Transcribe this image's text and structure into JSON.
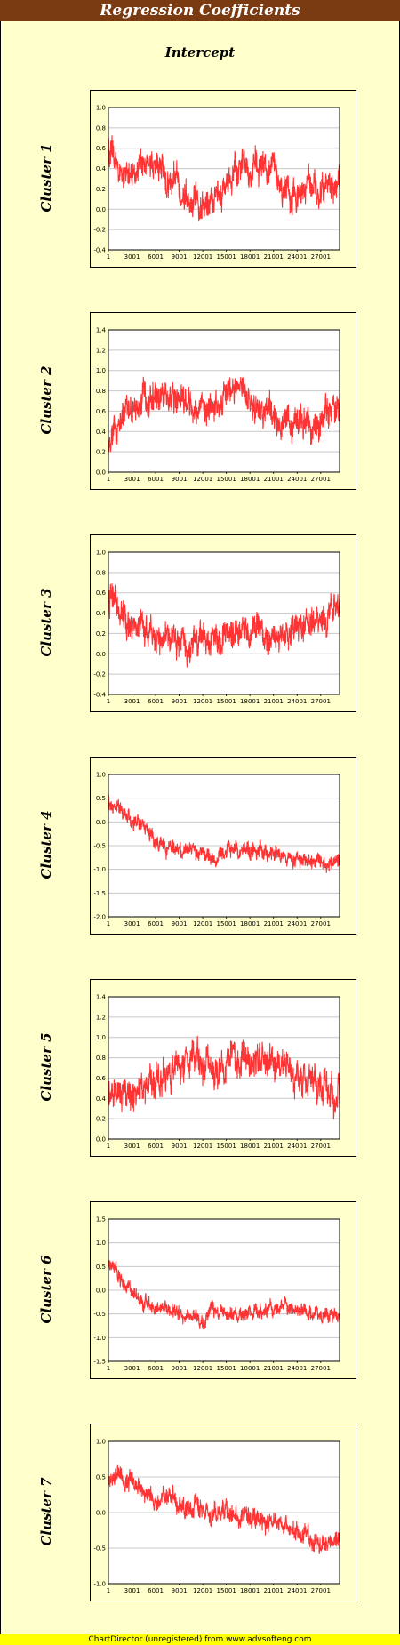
{
  "title": "Regression Coefficients",
  "subtitle": "Intercept",
  "footer": "ChartDirector (unregistered) from www.advsofteng.com",
  "colors": {
    "series": "#ff3333",
    "plot_bg": "#ffffff",
    "page_bg": "#ffffcc",
    "title_bg": "#7a3a12"
  },
  "chart_data": [
    {
      "type": "line",
      "cluster": "Cluster 1",
      "xticks": [
        "1",
        "3001",
        "6001",
        "9001",
        "12001",
        "15001",
        "18001",
        "21001",
        "24001",
        "27001"
      ],
      "xlim": [
        1,
        29400
      ],
      "ylim": [
        -0.4,
        1.0
      ],
      "yticks": [
        "-0.4",
        "-0.2",
        "0.0",
        "0.2",
        "0.4",
        "0.6",
        "0.8",
        "1.0"
      ],
      "series": [
        {
          "x": [
            1,
            1500,
            3000,
            4500,
            6000,
            7500,
            9000,
            10500,
            12000,
            13500,
            15000,
            16500,
            18000,
            19500,
            21000,
            22500,
            24000,
            25500,
            27000,
            28500,
            29400
          ],
          "values": [
            0.6,
            0.32,
            0.38,
            0.42,
            0.45,
            0.3,
            0.22,
            0.15,
            0.1,
            0.08,
            0.16,
            0.42,
            0.48,
            0.38,
            0.3,
            0.2,
            0.16,
            0.22,
            0.18,
            0.2,
            0.28
          ],
          "spread": 0.13
        }
      ]
    },
    {
      "type": "line",
      "cluster": "Cluster 2",
      "xticks": [
        "1",
        "3001",
        "6001",
        "9001",
        "12001",
        "15001",
        "18001",
        "21001",
        "24001",
        "27001"
      ],
      "xlim": [
        1,
        29400
      ],
      "ylim": [
        0.0,
        1.4
      ],
      "yticks": [
        "0.0",
        "0.2",
        "0.4",
        "0.6",
        "0.8",
        "1.0",
        "1.2",
        "1.4"
      ],
      "series": [
        {
          "x": [
            1,
            1500,
            3000,
            4500,
            6000,
            7500,
            9000,
            10500,
            12000,
            13500,
            15000,
            16500,
            18000,
            19500,
            21000,
            22500,
            24000,
            25500,
            27000,
            28500,
            29400
          ],
          "values": [
            0.2,
            0.45,
            0.62,
            0.68,
            0.72,
            0.76,
            0.72,
            0.65,
            0.6,
            0.68,
            0.78,
            0.85,
            0.72,
            0.62,
            0.55,
            0.5,
            0.48,
            0.52,
            0.5,
            0.55,
            0.6
          ],
          "spread": 0.13
        }
      ]
    },
    {
      "type": "line",
      "cluster": "Cluster 3",
      "xticks": [
        "1",
        "3001",
        "6001",
        "9001",
        "12001",
        "15001",
        "18001",
        "21001",
        "24001",
        "27001"
      ],
      "xlim": [
        1,
        29400
      ],
      "ylim": [
        -0.4,
        1.0
      ],
      "yticks": [
        "-0.4",
        "-0.2",
        "0.0",
        "0.2",
        "0.4",
        "0.6",
        "0.8",
        "1.0"
      ],
      "series": [
        {
          "x": [
            1,
            1500,
            3000,
            4500,
            6000,
            7500,
            9000,
            10500,
            12000,
            13500,
            15000,
            16500,
            18000,
            19500,
            21000,
            22500,
            24000,
            25500,
            27000,
            28500,
            29400
          ],
          "values": [
            0.55,
            0.42,
            0.32,
            0.25,
            0.18,
            0.15,
            0.12,
            0.08,
            0.05,
            0.1,
            0.18,
            0.22,
            0.2,
            0.18,
            0.15,
            0.18,
            0.2,
            0.25,
            0.35,
            0.42,
            0.5
          ],
          "spread": 0.13
        }
      ]
    },
    {
      "type": "line",
      "cluster": "Cluster 4",
      "xticks": [
        "1",
        "3001",
        "6001",
        "9001",
        "12001",
        "15001",
        "18001",
        "21001",
        "24001",
        "27001"
      ],
      "xlim": [
        1,
        29400
      ],
      "ylim": [
        -2.0,
        1.0
      ],
      "yticks": [
        "-2.0",
        "-1.5",
        "-1.0",
        "-0.5",
        "0.0",
        "0.5",
        "1.0"
      ],
      "series": [
        {
          "x": [
            1,
            1500,
            3000,
            4500,
            6000,
            7500,
            9000,
            10500,
            12000,
            13500,
            15000,
            16500,
            18000,
            19500,
            21000,
            22500,
            24000,
            25500,
            27000,
            28500,
            29400
          ],
          "values": [
            0.5,
            0.2,
            0.05,
            -0.15,
            -0.45,
            -0.55,
            -0.6,
            -0.62,
            -0.68,
            -0.75,
            -0.55,
            -0.6,
            -0.62,
            -0.65,
            -0.7,
            -0.75,
            -0.78,
            -0.8,
            -0.82,
            -0.85,
            -0.85
          ],
          "spread": 0.14
        }
      ]
    },
    {
      "type": "line",
      "cluster": "Cluster 5",
      "xticks": [
        "1",
        "3001",
        "6001",
        "9001",
        "12001",
        "15001",
        "18001",
        "21001",
        "24001",
        "27001"
      ],
      "xlim": [
        1,
        29400
      ],
      "ylim": [
        0.0,
        1.4
      ],
      "yticks": [
        "0.0",
        "0.2",
        "0.4",
        "0.6",
        "0.8",
        "1.0",
        "1.2",
        "1.4"
      ],
      "series": [
        {
          "x": [
            1,
            1500,
            3000,
            4500,
            6000,
            7500,
            9000,
            10500,
            12000,
            13500,
            15000,
            16500,
            18000,
            19500,
            21000,
            22500,
            24000,
            25500,
            27000,
            28500,
            29400
          ],
          "values": [
            0.45,
            0.5,
            0.45,
            0.48,
            0.5,
            0.6,
            0.72,
            0.8,
            0.78,
            0.68,
            0.72,
            0.8,
            0.75,
            0.7,
            0.72,
            0.65,
            0.6,
            0.55,
            0.52,
            0.45,
            0.4
          ],
          "spread": 0.15
        }
      ]
    },
    {
      "type": "line",
      "cluster": "Cluster 6",
      "xticks": [
        "1",
        "3001",
        "6001",
        "9001",
        "12001",
        "15001",
        "18001",
        "21001",
        "24001",
        "27001"
      ],
      "xlim": [
        1,
        29400
      ],
      "ylim": [
        -1.5,
        1.5
      ],
      "yticks": [
        "-1.5",
        "-1.0",
        "-0.5",
        "0.0",
        "0.5",
        "1.0",
        "1.5"
      ],
      "series": [
        {
          "x": [
            1,
            1500,
            3000,
            4500,
            6000,
            7500,
            9000,
            10500,
            12000,
            13500,
            15000,
            16500,
            18000,
            19500,
            21000,
            22500,
            24000,
            25500,
            27000,
            28500,
            29400
          ],
          "values": [
            0.55,
            0.25,
            -0.05,
            -0.25,
            -0.38,
            -0.45,
            -0.5,
            -0.58,
            -0.62,
            -0.5,
            -0.48,
            -0.5,
            -0.48,
            -0.45,
            -0.38,
            -0.35,
            -0.42,
            -0.48,
            -0.52,
            -0.58,
            -0.6
          ],
          "spread": 0.13
        }
      ]
    },
    {
      "type": "line",
      "cluster": "Cluster 7",
      "xticks": [
        "1",
        "3001",
        "6001",
        "9001",
        "12001",
        "15001",
        "18001",
        "21001",
        "24001",
        "27001"
      ],
      "xlim": [
        1,
        29400
      ],
      "ylim": [
        -1.0,
        1.0
      ],
      "yticks": [
        "-1.0",
        "-0.5",
        "0.0",
        "0.5",
        "1.0"
      ],
      "series": [
        {
          "x": [
            1,
            1500,
            3000,
            4500,
            6000,
            7500,
            9000,
            10500,
            12000,
            13500,
            15000,
            16500,
            18000,
            19500,
            21000,
            22500,
            24000,
            25500,
            27000,
            28500,
            29400
          ],
          "values": [
            0.5,
            0.52,
            0.4,
            0.3,
            0.2,
            0.15,
            0.1,
            0.12,
            0.08,
            0.02,
            0.0,
            -0.05,
            -0.08,
            -0.12,
            -0.18,
            -0.22,
            -0.28,
            -0.35,
            -0.4,
            -0.42,
            -0.35
          ],
          "spread": 0.12
        }
      ]
    }
  ]
}
